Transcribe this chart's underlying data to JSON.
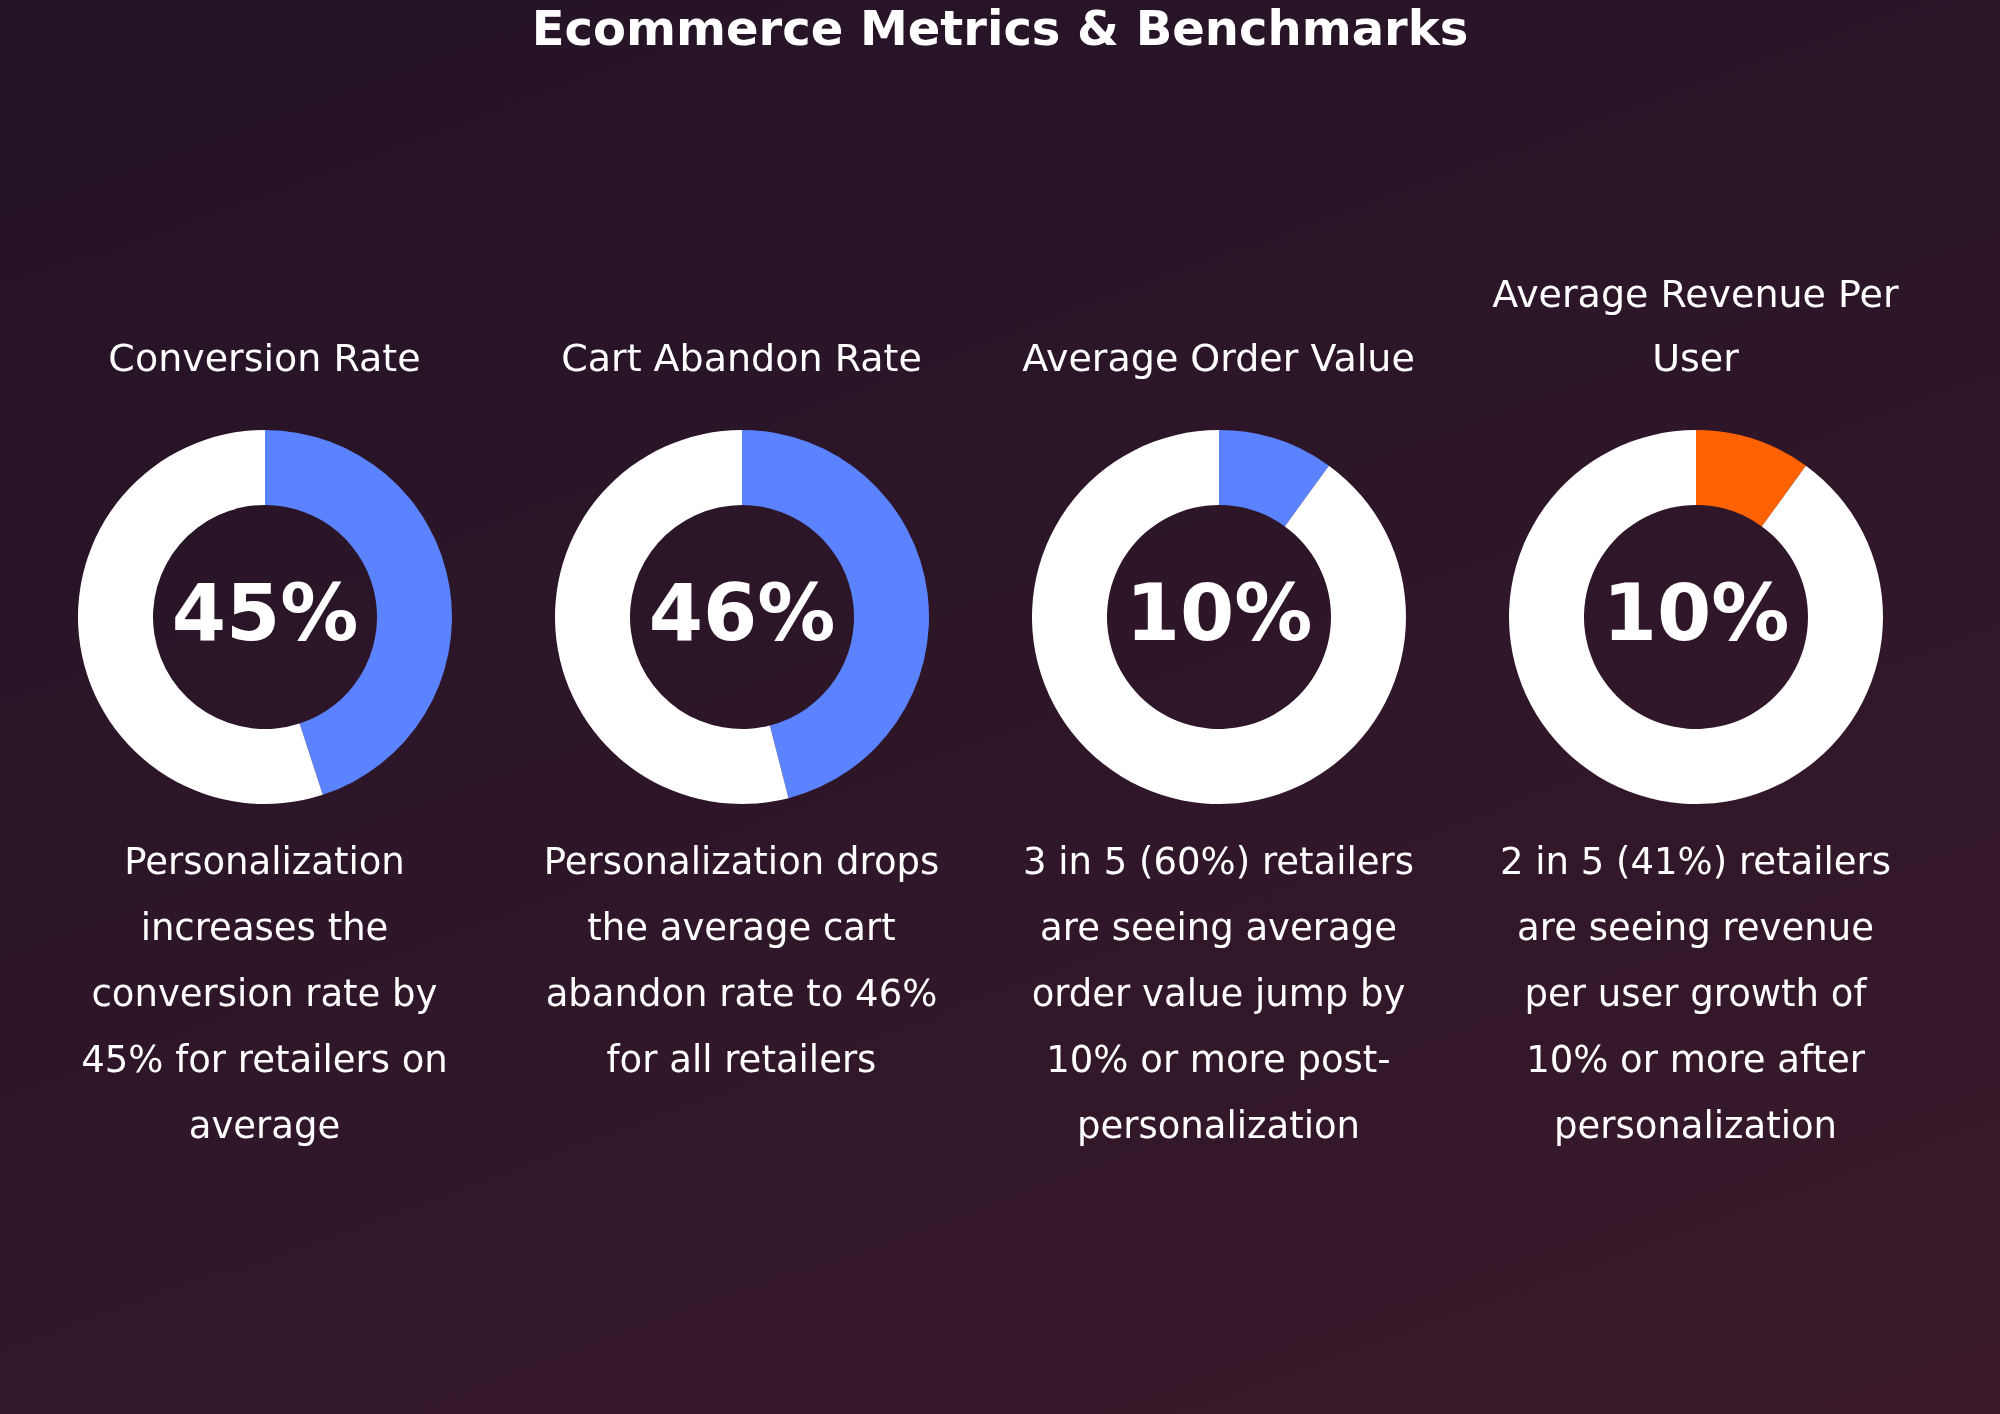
{
  "chart_data": [
    {
      "type": "other",
      "title": "Ecommerce Metrics & Benchmarks"
    },
    {
      "type": "donut",
      "title": "Conversion Rate",
      "categories": [
        null,
        null
      ],
      "values": [
        45,
        55
      ],
      "colors": [
        "#5b82ff",
        "#ffffff"
      ],
      "annotations": [
        "45%",
        "Personalization increases the conversion rate by 45% for retailers on average"
      ]
    },
    {
      "type": "donut",
      "title": "Cart Abandon Rate",
      "categories": [
        null,
        null
      ],
      "values": [
        46,
        54
      ],
      "colors": [
        "#5b82ff",
        "#ffffff"
      ],
      "annotations": [
        "46%",
        "Personalization drops the average cart abandon rate to 46% for all retailers"
      ]
    },
    {
      "type": "donut",
      "title": "Average Order Value",
      "categories": [
        null,
        null
      ],
      "values": [
        10,
        90
      ],
      "colors": [
        "#5b82ff",
        "#ffffff"
      ],
      "annotations": [
        "10%",
        "3 in 5 (60%) retailers are seeing average order value jump by 10% or more post-personalization"
      ]
    },
    {
      "type": "donut",
      "title": "Average Revenue Per User",
      "categories": [
        null,
        null
      ],
      "values": [
        10,
        90
      ],
      "colors": [
        "#ff6200",
        "#ffffff"
      ],
      "annotations": [
        "10%",
        "2 in 5 (41%) retailers are seeing revenue per user growth of 10% or more after personalization"
      ]
    }
  ]
}
